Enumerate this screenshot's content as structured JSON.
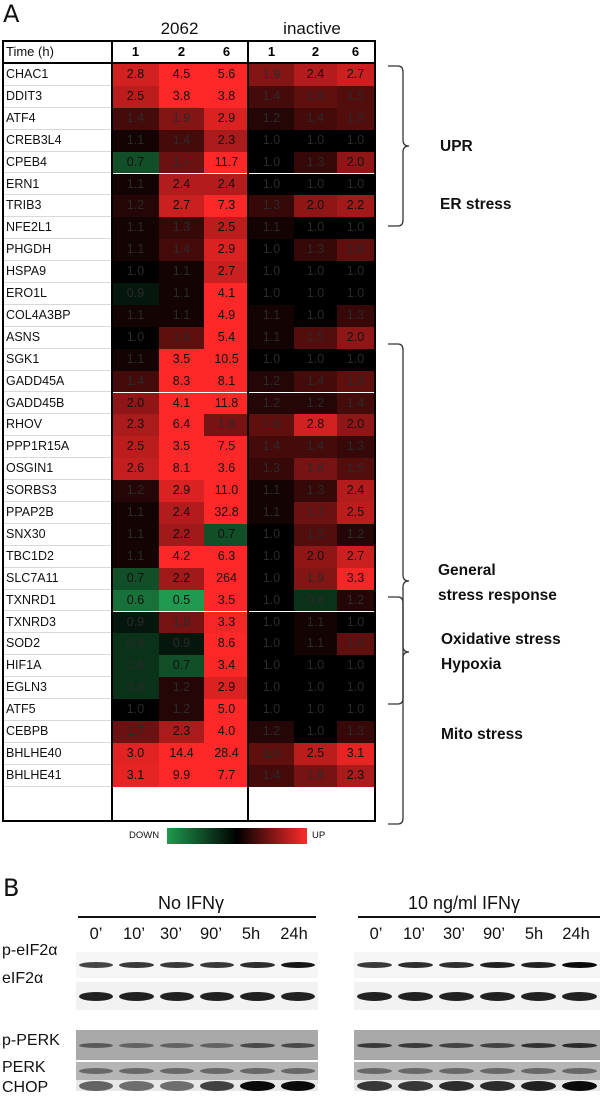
{
  "panel_a": {
    "letter": "A",
    "group_labels": [
      "2062",
      "inactive"
    ],
    "time_header": "Time (h)",
    "time_points": [
      "1",
      "2",
      "6",
      "1",
      "2",
      "6"
    ],
    "color_scale": {
      "down_label": "DOWN",
      "up_label": "UP",
      "down_color": "#1f9a4e",
      "mid_color": "#000000",
      "up_color": "#ff2a2a"
    },
    "genes": [
      {
        "gene": "CHAC1",
        "values": [
          "2.8",
          "4.5",
          "5.6",
          "1.9",
          "2.4",
          "2.7"
        ]
      },
      {
        "gene": "DDIT3",
        "values": [
          "2.5",
          "3.8",
          "3.8",
          "1.4",
          "1.6",
          "1.5"
        ]
      },
      {
        "gene": "ATF4",
        "values": [
          "1.4",
          "1.9",
          "2.9",
          "1.2",
          "1.4",
          "1.5"
        ]
      },
      {
        "gene": "CREB3L4",
        "values": [
          "1.1",
          "1.4",
          "2.3",
          "1.0",
          "1.0",
          "1.0"
        ]
      },
      {
        "gene": "CPEB4",
        "values": [
          "0.7",
          "1.7",
          "11.7",
          "1.0",
          "1.3",
          "2.0"
        ]
      },
      {
        "gene": "ERN1",
        "values": [
          "1.1",
          "2.4",
          "2.4",
          "1.0",
          "1.0",
          "1.0"
        ]
      },
      {
        "gene": "TRIB3",
        "values": [
          "1.2",
          "2.7",
          "7.3",
          "1.3",
          "2.0",
          "2.2"
        ]
      },
      {
        "gene": "NFE2L1",
        "values": [
          "1.1",
          "1.3",
          "2.5",
          "1.1",
          "1.0",
          "1.0"
        ]
      },
      {
        "gene": "PHGDH",
        "values": [
          "1.1",
          "1.4",
          "2.9",
          "1.0",
          "1.3",
          "1.6"
        ]
      },
      {
        "gene": "HSPA9",
        "values": [
          "1.0",
          "1.1",
          "2.7",
          "1.0",
          "1.0",
          "1.0"
        ]
      },
      {
        "gene": "ERO1L",
        "values": [
          "0.9",
          "1.1",
          "4.1",
          "1.0",
          "1.0",
          "1.0"
        ]
      },
      {
        "gene": "COL4A3BP",
        "values": [
          "1.1",
          "1.1",
          "4.9",
          "1.1",
          "1.0",
          "1.3"
        ]
      },
      {
        "gene": "ASNS",
        "values": [
          "1.0",
          "1.6",
          "5.4",
          "1.1",
          "1.5",
          "2.0"
        ]
      },
      {
        "gene": "SGK1",
        "values": [
          "1.1",
          "3.5",
          "10.5",
          "1.0",
          "1.0",
          "1.0"
        ]
      },
      {
        "gene": "GADD45A",
        "values": [
          "1.4",
          "8.3",
          "8.1",
          "1.2",
          "1.4",
          "1.6"
        ]
      },
      {
        "gene": "GADD45B",
        "values": [
          "2.0",
          "4.1",
          "11.8",
          "1.2",
          "1.2",
          "1.4"
        ]
      },
      {
        "gene": "RHOV",
        "values": [
          "2.3",
          "6.4",
          "1.8",
          "1.6",
          "2.8",
          "2.0"
        ]
      },
      {
        "gene": "PPP1R15A",
        "values": [
          "2.5",
          "3.5",
          "7.5",
          "1.4",
          "1.4",
          "1.3"
        ]
      },
      {
        "gene": "OSGIN1",
        "values": [
          "2.6",
          "8.1",
          "3.6",
          "1.3",
          "1.8",
          "1.5"
        ]
      },
      {
        "gene": "SORBS3",
        "values": [
          "1.2",
          "2.9",
          "11.0",
          "1.1",
          "1.3",
          "2.4"
        ]
      },
      {
        "gene": "PPAP2B",
        "values": [
          "1.1",
          "2.4",
          "32.8",
          "1.1",
          "1.7",
          "2.5"
        ]
      },
      {
        "gene": "SNX30",
        "values": [
          "1.1",
          "2.2",
          "0.7",
          "1.0",
          "1.5",
          "1.2"
        ]
      },
      {
        "gene": "TBC1D2",
        "values": [
          "1.1",
          "4.2",
          "6.3",
          "1.0",
          "2.0",
          "2.7"
        ]
      },
      {
        "gene": "SLC7A11",
        "values": [
          "0.7",
          "2.2",
          "264",
          "1.0",
          "1.9",
          "3.3"
        ]
      },
      {
        "gene": "TXNRD1",
        "values": [
          "0.6",
          "0.5",
          "3.5",
          "1.0",
          "0.8",
          "1.2"
        ]
      },
      {
        "gene": "TXNRD3",
        "values": [
          "0.9",
          "1.8",
          "3.3",
          "1.0",
          "1.1",
          "1.0"
        ]
      },
      {
        "gene": "SOD2",
        "values": [
          "0.8",
          "0.9",
          "8.6",
          "1.0",
          "1.1",
          "1.6"
        ]
      },
      {
        "gene": "HIF1A",
        "values": [
          "0.8",
          "0.7",
          "3.4",
          "1.0",
          "1.0",
          "1.0"
        ]
      },
      {
        "gene": "EGLN3",
        "values": [
          "0.8",
          "1.2",
          "2.9",
          "1.0",
          "1.0",
          "1.0"
        ]
      },
      {
        "gene": "ATF5",
        "values": [
          "1.0",
          "1.2",
          "5.0",
          "1.0",
          "1.0",
          "1.0"
        ]
      },
      {
        "gene": "CEBPB",
        "values": [
          "1.7",
          "2.3",
          "4.0",
          "1.2",
          "1.0",
          "1.3"
        ]
      },
      {
        "gene": "BHLHE40",
        "values": [
          "3.0",
          "14.4",
          "28.4",
          "1.6",
          "2.5",
          "3.1"
        ]
      },
      {
        "gene": "BHLHE41",
        "values": [
          "3.1",
          "9.9",
          "7.7",
          "1.4",
          "1.8",
          "2.3"
        ]
      }
    ],
    "categories": [
      "UPR",
      "ER stress",
      "General",
      "stress response",
      "Oxidative stress",
      "Hypoxia",
      "Mito stress"
    ]
  },
  "panel_b": {
    "letter": "B",
    "conditions": [
      "No IFNγ",
      "10 ng/ml IFNγ"
    ],
    "time_points": [
      "0’",
      "10’",
      "30’",
      "90’",
      "5h",
      "24h"
    ],
    "blots": [
      "p-eIF2α",
      "eIF2α",
      "p-PERK",
      "PERK",
      "CHOP"
    ]
  }
}
